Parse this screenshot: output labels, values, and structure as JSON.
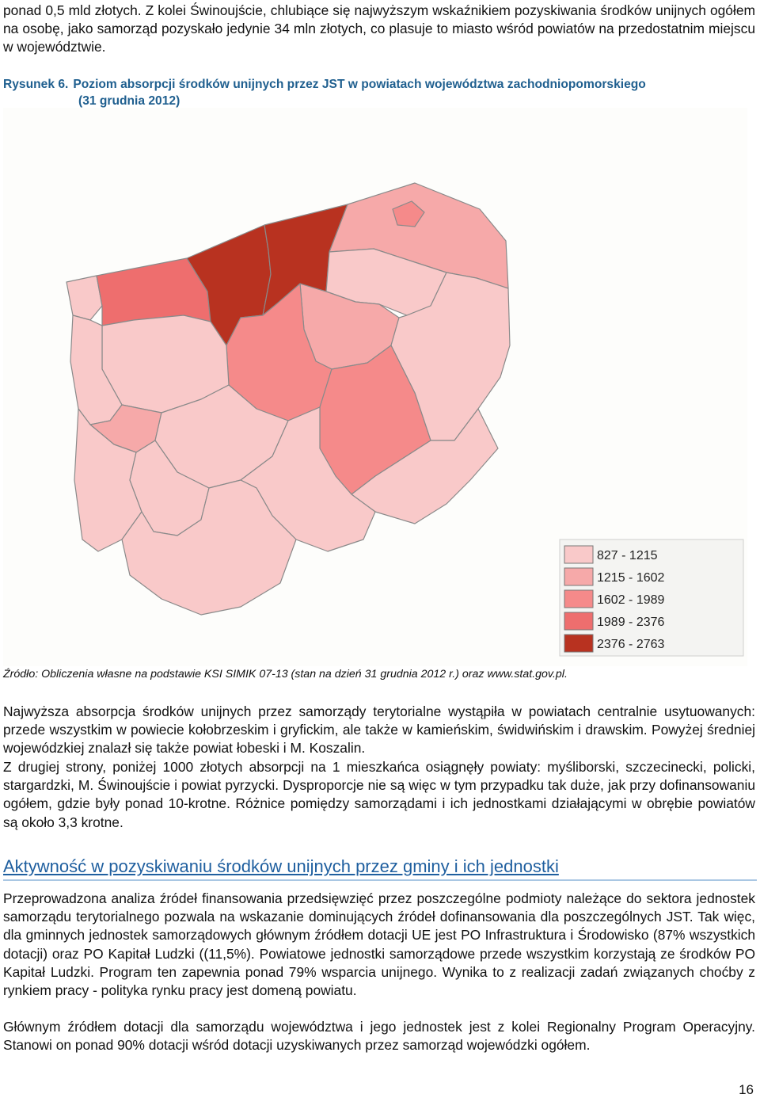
{
  "paragraphs": {
    "p1": "ponad 0,5 mld złotych. Z kolei Świnoujście, chlubiące się najwyższym wskaźnikiem pozyskiwania środków unijnych ogółem na osobę, jako samorząd pozyskało jedynie 34 mln złotych, co plasuje to miasto wśród powiatów na przedostatnim miejscu w województwie.",
    "p2": "Najwyższa absorpcja środków unijnych przez samorządy terytorialne wystąpiła w powiatach centralnie usytuowanych: przede wszystkim w powiecie kołobrzeskim i gryfickim, ale także w kamieńskim, świdwińskim i drawskim. Powyżej średniej wojewódzkiej znalazł się także powiat łobeski i M. Koszalin.",
    "p3": "Z drugiej strony, poniżej 1000 złotych absorpcji na 1 mieszkańca osiągnęły powiaty: myśliborski, szczecinecki, policki, stargardzki, M. Świnoujście i powiat pyrzycki. Dysproporcje nie są więc w tym przypadku tak duże, jak przy dofinansowaniu ogółem, gdzie były ponad 10-krotne. Różnice pomiędzy samorządami i ich jednostkami działającymi w obrębie powiatów są około 3,3 krotne.",
    "p4": "Przeprowadzona analiza źródeł finansowania przedsięwzięć przez poszczególne podmioty należące do sektora jednostek samorządu terytorialnego pozwala na wskazanie dominujących źródeł dofinansowania dla poszczególnych JST. Tak więc, dla gminnych jednostek samorządowych głównym źródłem dotacji UE jest PO Infrastruktura i Środowisko (87% wszystkich dotacji) oraz PO Kapitał Ludzki ((11,5%). Powiatowe jednostki samorządowe przede wszystkim korzystają ze środków PO Kapitał Ludzki. Program ten zapewnia ponad 79% wsparcia unijnego. Wynika to z realizacji zadań związanych choćby z rynkiem pracy - polityka rynku pracy jest domeną powiatu.",
    "p5": "Głównym źródłem dotacji dla samorządu województwa i jego jednostek jest z kolei Regionalny Program Operacyjny. Stanowi on ponad 90% dotacji wśród dotacji uzyskiwanych przez samorząd wojewódzki ogółem."
  },
  "figure": {
    "label": "Rysunek 6.",
    "title_line1": "Poziom absorpcji środków unijnych przez JST w powiatach województwa zachodniopomorskiego",
    "title_line2": "(31 grudnia 2012)",
    "source": "Źródło: Obliczenia własne na podstawie KSI SIMIK 07-13 (stan na dzień 31 grudnia 2012 r.) oraz www.stat.gov.pl.",
    "colors": {
      "class1": "#f9c9c9",
      "class2": "#f6a9a9",
      "class3": "#f58a8a",
      "class4": "#ee6e6e",
      "class5": "#b83220",
      "border": "#8a8a8a",
      "background": "#fdfdfb"
    },
    "legend": [
      {
        "label": "827 - 1215",
        "color": "#f9c9c9"
      },
      {
        "label": "1215 - 1602",
        "color": "#f6a9a9"
      },
      {
        "label": "1602 - 1989",
        "color": "#f58a8a"
      },
      {
        "label": "1989 - 2376",
        "color": "#ee6e6e"
      },
      {
        "label": "2376 - 2763",
        "color": "#b83220"
      }
    ]
  },
  "section": {
    "heading": "Aktywność w pozyskiwaniu środków unijnych przez gminy i ich jednostki"
  },
  "page_number": "16"
}
